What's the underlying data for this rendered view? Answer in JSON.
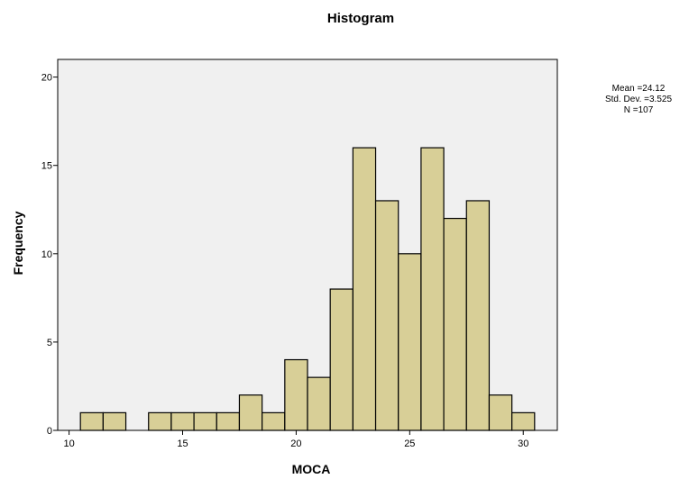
{
  "chart_data": {
    "type": "bar",
    "title": "Histogram",
    "xlabel": "MOCA",
    "ylabel": "Frequency",
    "xlim": [
      9.5,
      31.5
    ],
    "ylim": [
      0,
      21
    ],
    "x_ticks": [
      "10",
      "15",
      "20",
      "25",
      "30"
    ],
    "x_tick_values": [
      10,
      15,
      20,
      25,
      30
    ],
    "y_ticks": [
      "0",
      "5",
      "10",
      "15",
      "20"
    ],
    "y_tick_values": [
      0,
      5,
      10,
      15,
      20
    ],
    "bin_width": 1,
    "bins": [
      {
        "start": 10.5,
        "end": 11.5,
        "count": 1
      },
      {
        "start": 11.5,
        "end": 12.5,
        "count": 1
      },
      {
        "start": 12.5,
        "end": 13.5,
        "count": 0
      },
      {
        "start": 13.5,
        "end": 14.5,
        "count": 1
      },
      {
        "start": 14.5,
        "end": 15.5,
        "count": 1
      },
      {
        "start": 15.5,
        "end": 16.5,
        "count": 1
      },
      {
        "start": 16.5,
        "end": 17.5,
        "count": 1
      },
      {
        "start": 17.5,
        "end": 18.5,
        "count": 2
      },
      {
        "start": 18.5,
        "end": 19.5,
        "count": 1
      },
      {
        "start": 19.5,
        "end": 20.5,
        "count": 4
      },
      {
        "start": 20.5,
        "end": 21.5,
        "count": 3
      },
      {
        "start": 21.5,
        "end": 22.5,
        "count": 8
      },
      {
        "start": 22.5,
        "end": 23.5,
        "count": 16
      },
      {
        "start": 23.5,
        "end": 24.5,
        "count": 13
      },
      {
        "start": 24.5,
        "end": 25.5,
        "count": 10
      },
      {
        "start": 25.5,
        "end": 26.5,
        "count": 16
      },
      {
        "start": 26.5,
        "end": 27.5,
        "count": 12
      },
      {
        "start": 27.5,
        "end": 28.5,
        "count": 13
      },
      {
        "start": 28.5,
        "end": 29.5,
        "count": 2
      },
      {
        "start": 29.5,
        "end": 30.5,
        "count": 1
      }
    ],
    "stats": {
      "mean": "Mean =24.12",
      "std_dev": "Std. Dev. =3.525",
      "n": "N =107"
    },
    "grid": false,
    "colors": {
      "bar_fill": "#d8cf97",
      "bar_stroke": "#000000",
      "plot_background": "#f0f0f0",
      "frame": "#000000"
    }
  }
}
